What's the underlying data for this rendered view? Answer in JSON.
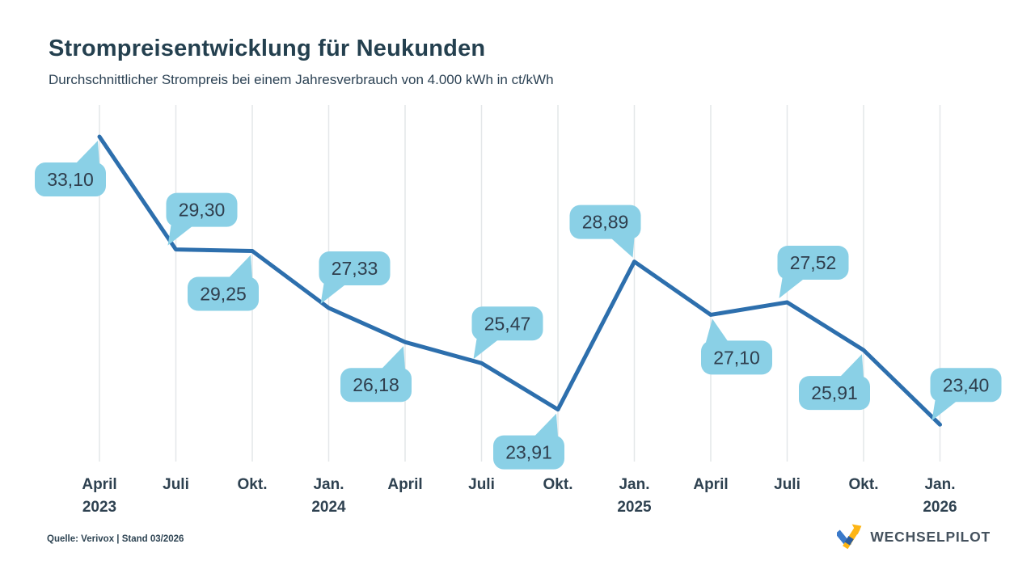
{
  "header": {
    "title": "Strompreisentwicklung für Neukunden",
    "subtitle": "Durchschnittlicher Strompreis bei einem Jahresverbrauch von 4.000 kWh in ct/kWh"
  },
  "chart_data": {
    "type": "line",
    "title": "Strompreisentwicklung für Neukunden",
    "subtitle": "Durchschnittlicher Strompreis bei einem Jahresverbrauch von 4.000 kWh in ct/kWh",
    "ylabel": "ct/kWh",
    "xlabel": "",
    "ylim": [
      23,
      34
    ],
    "grid": "vertical-only",
    "legend": "none",
    "x_ticks": [
      {
        "month": "April",
        "year": "2023"
      },
      {
        "month": "Juli"
      },
      {
        "month": "Okt."
      },
      {
        "month": "Jan.",
        "year": "2024"
      },
      {
        "month": "April"
      },
      {
        "month": "Juli"
      },
      {
        "month": "Okt."
      },
      {
        "month": "Jan.",
        "year": "2025"
      },
      {
        "month": "April"
      },
      {
        "month": "Juli"
      },
      {
        "month": "Okt."
      },
      {
        "month": "Jan.",
        "year": "2026"
      }
    ],
    "values": [
      33.1,
      29.3,
      29.25,
      27.33,
      26.18,
      25.47,
      23.91,
      28.89,
      27.1,
      27.52,
      25.91,
      23.4
    ],
    "labels": [
      "33,10",
      "29,30",
      "29,25",
      "27,33",
      "26,18",
      "25,47",
      "23,91",
      "28,89",
      "27,10",
      "27,52",
      "25,91",
      "23,40"
    ],
    "label_placement": [
      "below-left",
      "above-right",
      "below-left",
      "above-right",
      "below-left",
      "above-right",
      "below-left",
      "above-left",
      "below-right",
      "above-right",
      "below-left",
      "above-right"
    ],
    "colors": {
      "line": "#2d6fad",
      "bubble_fill": "#8ad0e6",
      "bubble_text": "#2f3e4d",
      "gridline": "#e4e7e9",
      "tick_text": "#2e4150"
    }
  },
  "footer": {
    "source": "Quelle: Verivox | Stand 03/2026",
    "brand": "WECHSELPILOT"
  }
}
